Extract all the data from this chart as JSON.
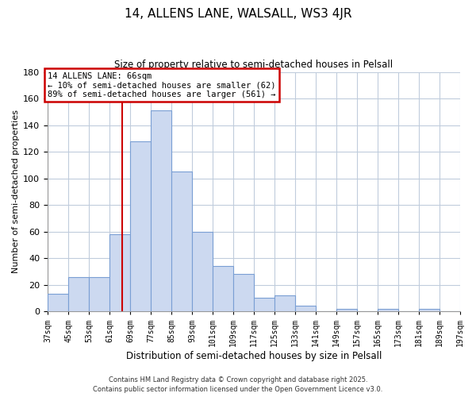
{
  "title": "14, ALLENS LANE, WALSALL, WS3 4JR",
  "subtitle": "Size of property relative to semi-detached houses in Pelsall",
  "xlabel": "Distribution of semi-detached houses by size in Pelsall",
  "ylabel": "Number of semi-detached properties",
  "bar_color": "#ccd9f0",
  "bar_edge_color": "#7a9fd4",
  "bins": [
    37,
    45,
    53,
    61,
    69,
    77,
    85,
    93,
    101,
    109,
    117,
    125,
    133,
    141,
    149,
    157,
    165,
    173,
    181,
    189,
    197
  ],
  "counts": [
    13,
    26,
    26,
    58,
    128,
    151,
    105,
    60,
    34,
    28,
    10,
    12,
    4,
    0,
    2,
    0,
    2,
    0,
    2,
    0
  ],
  "vline_x": 66,
  "vline_color": "#cc0000",
  "annotation_title": "14 ALLENS LANE: 66sqm",
  "annotation_line1": "← 10% of semi-detached houses are smaller (62)",
  "annotation_line2": "89% of semi-detached houses are larger (561) →",
  "ylim": [
    0,
    180
  ],
  "yticks": [
    0,
    20,
    40,
    60,
    80,
    100,
    120,
    140,
    160,
    180
  ],
  "tick_labels": [
    "37sqm",
    "45sqm",
    "53sqm",
    "61sqm",
    "69sqm",
    "77sqm",
    "85sqm",
    "93sqm",
    "101sqm",
    "109sqm",
    "117sqm",
    "125sqm",
    "133sqm",
    "141sqm",
    "149sqm",
    "157sqm",
    "165sqm",
    "173sqm",
    "181sqm",
    "189sqm",
    "197sqm"
  ],
  "footer_line1": "Contains HM Land Registry data © Crown copyright and database right 2025.",
  "footer_line2": "Contains public sector information licensed under the Open Government Licence v3.0.",
  "background_color": "#ffffff",
  "grid_color": "#c0ccdc"
}
